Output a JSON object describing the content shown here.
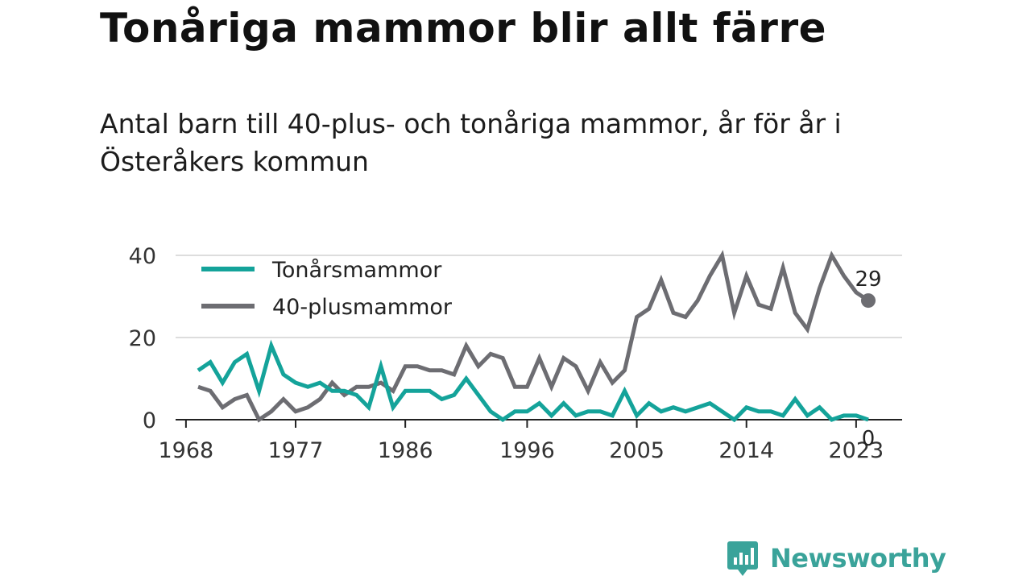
{
  "title": "Tonåriga mammor blir allt färre",
  "subtitle": "Antal barn till 40-plus- och tonåriga mammor, år för år i Österåkers kommun",
  "brand": "Newsworthy",
  "colors": {
    "teen": "#14a39a",
    "forty_plus": "#6d6d72",
    "grid": "#dddddd",
    "axis": "#222222",
    "brand": "#3aa39a"
  },
  "chart_data": {
    "type": "line",
    "x": [
      1969,
      1970,
      1971,
      1972,
      1973,
      1974,
      1975,
      1976,
      1977,
      1978,
      1979,
      1980,
      1981,
      1982,
      1983,
      1984,
      1985,
      1986,
      1987,
      1988,
      1989,
      1990,
      1991,
      1992,
      1993,
      1994,
      1995,
      1996,
      1997,
      1998,
      1999,
      2000,
      2001,
      2002,
      2003,
      2004,
      2005,
      2006,
      2007,
      2008,
      2009,
      2010,
      2011,
      2012,
      2013,
      2014,
      2015,
      2016,
      2017,
      2018,
      2019,
      2020,
      2021,
      2022,
      2023,
      2024
    ],
    "series": [
      {
        "name": "Tonårsmammor",
        "color": "#14a39a",
        "values": [
          12,
          14,
          9,
          14,
          16,
          7,
          18,
          11,
          9,
          8,
          9,
          7,
          7,
          6,
          3,
          13,
          3,
          7,
          7,
          7,
          5,
          6,
          10,
          6,
          2,
          0,
          2,
          2,
          4,
          1,
          4,
          1,
          2,
          2,
          1,
          7,
          1,
          4,
          2,
          3,
          2,
          3,
          4,
          2,
          0,
          3,
          2,
          2,
          1,
          5,
          1,
          3,
          0,
          1,
          1,
          0
        ]
      },
      {
        "name": "40-plusmammor",
        "color": "#6d6d72",
        "values": [
          8,
          7,
          3,
          5,
          6,
          0,
          2,
          5,
          2,
          3,
          5,
          9,
          6,
          8,
          8,
          9,
          7,
          13,
          13,
          12,
          12,
          11,
          18,
          13,
          16,
          15,
          8,
          8,
          15,
          8,
          15,
          13,
          7,
          14,
          9,
          12,
          25,
          27,
          34,
          26,
          25,
          29,
          35,
          40,
          26,
          35,
          28,
          27,
          37,
          26,
          22,
          32,
          40,
          35,
          31,
          29
        ]
      }
    ],
    "x_ticks": [
      "1968",
      "1977",
      "1986",
      "1996",
      "2005",
      "2014",
      "2023"
    ],
    "y_ticks": [
      "0",
      "20",
      "40"
    ],
    "ylim": [
      0,
      40
    ],
    "end_labels": {
      "teen": "0",
      "forty_plus": "29"
    },
    "grid": true,
    "legend": "top-left"
  }
}
